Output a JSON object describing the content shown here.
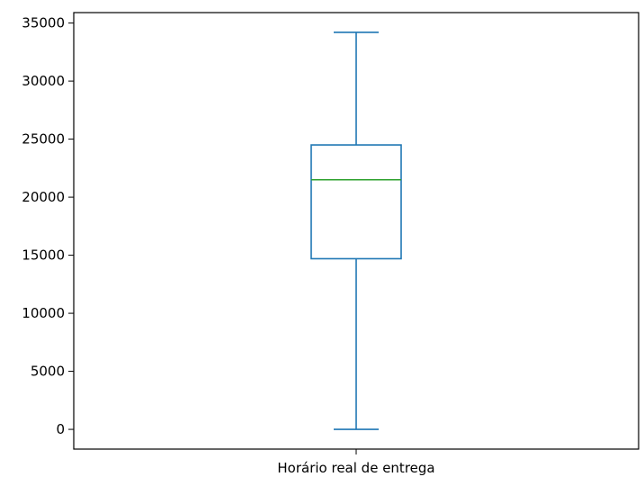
{
  "chart_data": {
    "type": "box",
    "categories": [
      "Horário real de entrega"
    ],
    "boxes": [
      {
        "category": "Horário real de entrega",
        "whisker_low": 0,
        "q1": 14700,
        "median": 21500,
        "q3": 24500,
        "whisker_high": 34200
      }
    ],
    "yticks": [
      0,
      5000,
      10000,
      15000,
      20000,
      25000,
      30000,
      35000
    ],
    "ylim": [
      -1700,
      35900
    ],
    "grid": false,
    "colors": {
      "box": "#1f77b4",
      "median": "#2ca02c",
      "axes": "#000000"
    }
  }
}
